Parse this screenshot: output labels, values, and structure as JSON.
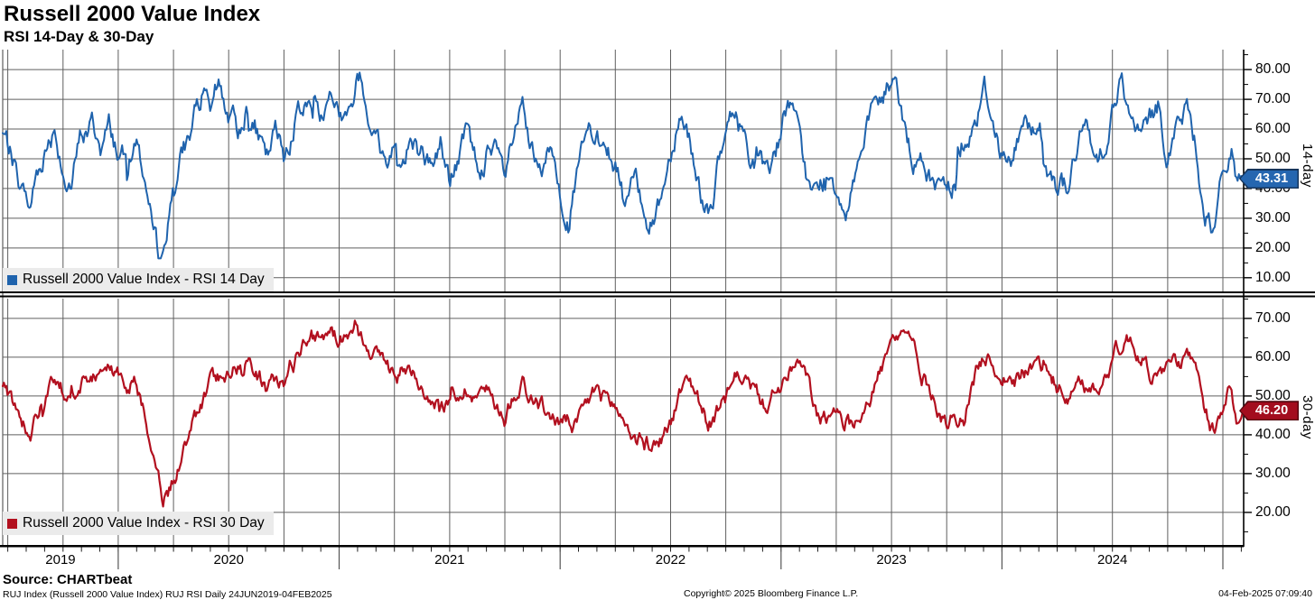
{
  "header": {
    "title": "Russell 2000 Value Index",
    "subtitle": "RSI 14-Day & 30-Day"
  },
  "colors": {
    "rsi14_line": "#1f63ad",
    "rsi14_badge": "#2566b0",
    "rsi14_badge_border": "#16355c",
    "rsi30_line": "#b2101f",
    "rsi30_badge": "#a30d1e",
    "rsi30_badge_border": "#570810",
    "grid": "#5f5f5f",
    "frame": "#000000",
    "legend_bg": "#ebebeb"
  },
  "panels": [
    {
      "id": "rsi14",
      "legend_label": "Russell 2000 Value Index - RSI 14 Day",
      "side_label": "14-day",
      "last_value_label": "43.31",
      "tick_labels": [
        "80.00",
        "70.00",
        "60.00",
        "50.00",
        "40.00",
        "30.00",
        "20.00",
        "10.00"
      ]
    },
    {
      "id": "rsi30",
      "legend_label": "Russell 2000 Value Index - RSI 30 Day",
      "side_label": "30-day",
      "last_value_label": "46.20",
      "tick_labels": [
        "70.00",
        "60.00",
        "50.00",
        "40.00",
        "30.00",
        "20.00"
      ]
    }
  ],
  "xaxis": {
    "years": [
      "2019",
      "2020",
      "2021",
      "2022",
      "2023",
      "2024"
    ],
    "range_text": "24JUN2019-04FEB2025"
  },
  "footer": {
    "source": "Source: CHARTbeat",
    "description": "RUJ Index (Russell 2000 Value Index) RUJ RSI  Daily 24JUN2019-04FEB2025",
    "copyright": "Copyright© 2025 Bloomberg Finance L.P.",
    "datetime": "04-Feb-2025 07:09:40"
  },
  "chart_data": {
    "type": "line",
    "title": "Russell 2000 Value Index — RSI 14-Day & 30-Day",
    "x_domain": [
      2019.477,
      2025.094
    ],
    "x_start_date": "24JUN2019",
    "x_end_date": "04FEB2025",
    "grid": "horizontal every 10 units, vertical quarterly; x band labeled by year",
    "legend_position": "bottom-left inside each panel",
    "series": [
      {
        "name": "Russell 2000 Value Index - RSI 14 Day",
        "color": "#1f63ad",
        "ylim": [
          5.4,
          86.7
        ],
        "yticks": [
          10,
          20,
          30,
          40,
          50,
          60,
          70,
          80
        ],
        "vclamp": [
          16.5,
          79.5
        ],
        "last": 43.31,
        "anchors": [
          [
            2019.48,
            58
          ],
          [
            2019.52,
            50
          ],
          [
            2019.56,
            40
          ],
          [
            2019.6,
            33
          ],
          [
            2019.63,
            45
          ],
          [
            2019.67,
            55
          ],
          [
            2019.71,
            63
          ],
          [
            2019.75,
            50
          ],
          [
            2019.79,
            44
          ],
          [
            2019.83,
            57
          ],
          [
            2019.88,
            61
          ],
          [
            2019.92,
            54
          ],
          [
            2019.96,
            60
          ],
          [
            2020.0,
            53
          ],
          [
            2020.04,
            47
          ],
          [
            2020.08,
            58
          ],
          [
            2020.12,
            45
          ],
          [
            2020.15,
            28
          ],
          [
            2020.18,
            17
          ],
          [
            2020.22,
            26
          ],
          [
            2020.25,
            45
          ],
          [
            2020.29,
            52
          ],
          [
            2020.33,
            58
          ],
          [
            2020.38,
            70
          ],
          [
            2020.42,
            62
          ],
          [
            2020.46,
            73
          ],
          [
            2020.5,
            65
          ],
          [
            2020.54,
            57
          ],
          [
            2020.58,
            70
          ],
          [
            2020.63,
            60
          ],
          [
            2020.67,
            46
          ],
          [
            2020.71,
            56
          ],
          [
            2020.75,
            50
          ],
          [
            2020.79,
            63
          ],
          [
            2020.83,
            72
          ],
          [
            2020.88,
            68
          ],
          [
            2020.92,
            64
          ],
          [
            2020.96,
            71
          ],
          [
            2021.0,
            67
          ],
          [
            2021.04,
            61
          ],
          [
            2021.08,
            74
          ],
          [
            2021.13,
            67
          ],
          [
            2021.17,
            57
          ],
          [
            2021.21,
            48
          ],
          [
            2021.25,
            56
          ],
          [
            2021.29,
            50
          ],
          [
            2021.33,
            59
          ],
          [
            2021.38,
            52
          ],
          [
            2021.42,
            47
          ],
          [
            2021.46,
            56
          ],
          [
            2021.5,
            42
          ],
          [
            2021.54,
            50
          ],
          [
            2021.58,
            56
          ],
          [
            2021.63,
            45
          ],
          [
            2021.67,
            53
          ],
          [
            2021.71,
            48
          ],
          [
            2021.75,
            40
          ],
          [
            2021.79,
            56
          ],
          [
            2021.83,
            63
          ],
          [
            2021.88,
            47
          ],
          [
            2021.92,
            40
          ],
          [
            2021.96,
            53
          ],
          [
            2022.0,
            43
          ],
          [
            2022.04,
            30
          ],
          [
            2022.08,
            46
          ],
          [
            2022.13,
            56
          ],
          [
            2022.17,
            52
          ],
          [
            2022.21,
            58
          ],
          [
            2022.25,
            49
          ],
          [
            2022.29,
            35
          ],
          [
            2022.33,
            41
          ],
          [
            2022.38,
            34
          ],
          [
            2022.42,
            30
          ],
          [
            2022.46,
            39
          ],
          [
            2022.5,
            53
          ],
          [
            2022.54,
            70
          ],
          [
            2022.58,
            61
          ],
          [
            2022.63,
            42
          ],
          [
            2022.67,
            32
          ],
          [
            2022.71,
            46
          ],
          [
            2022.75,
            56
          ],
          [
            2022.79,
            63
          ],
          [
            2022.83,
            58
          ],
          [
            2022.88,
            51
          ],
          [
            2022.92,
            44
          ],
          [
            2022.96,
            49
          ],
          [
            2023.0,
            61
          ],
          [
            2023.04,
            69
          ],
          [
            2023.08,
            54
          ],
          [
            2023.13,
            38
          ],
          [
            2023.17,
            34
          ],
          [
            2023.21,
            46
          ],
          [
            2023.25,
            42
          ],
          [
            2023.29,
            37
          ],
          [
            2023.33,
            49
          ],
          [
            2023.38,
            56
          ],
          [
            2023.42,
            62
          ],
          [
            2023.46,
            68
          ],
          [
            2023.5,
            76
          ],
          [
            2023.54,
            69
          ],
          [
            2023.58,
            54
          ],
          [
            2023.63,
            48
          ],
          [
            2023.67,
            44
          ],
          [
            2023.71,
            40
          ],
          [
            2023.75,
            34
          ],
          [
            2023.79,
            43
          ],
          [
            2023.83,
            56
          ],
          [
            2023.88,
            66
          ],
          [
            2023.92,
            73
          ],
          [
            2023.96,
            64
          ],
          [
            2024.0,
            54
          ],
          [
            2024.04,
            47
          ],
          [
            2024.08,
            58
          ],
          [
            2024.13,
            63
          ],
          [
            2024.17,
            59
          ],
          [
            2024.21,
            51
          ],
          [
            2024.25,
            44
          ],
          [
            2024.29,
            40
          ],
          [
            2024.33,
            53
          ],
          [
            2024.38,
            59
          ],
          [
            2024.42,
            49
          ],
          [
            2024.46,
            56
          ],
          [
            2024.5,
            70
          ],
          [
            2024.54,
            78
          ],
          [
            2024.58,
            61
          ],
          [
            2024.63,
            54
          ],
          [
            2024.67,
            61
          ],
          [
            2024.71,
            66
          ],
          [
            2024.75,
            54
          ],
          [
            2024.79,
            61
          ],
          [
            2024.83,
            66
          ],
          [
            2024.88,
            54
          ],
          [
            2024.92,
            34
          ],
          [
            2024.96,
            27
          ],
          [
            2025.0,
            41
          ],
          [
            2025.04,
            53
          ],
          [
            2025.06,
            46
          ],
          [
            2025.09,
            43.31
          ]
        ]
      },
      {
        "name": "Russell 2000 Value Index - RSI 30 Day",
        "color": "#b2101f",
        "ylim": [
          11.6,
          75.1
        ],
        "yticks": [
          20,
          30,
          40,
          50,
          60,
          70
        ],
        "vclamp": [
          21.5,
          71.2
        ],
        "last": 46.2,
        "anchors": [
          [
            2019.48,
            52
          ],
          [
            2019.54,
            46
          ],
          [
            2019.6,
            42
          ],
          [
            2019.67,
            50
          ],
          [
            2019.71,
            54
          ],
          [
            2019.75,
            51
          ],
          [
            2019.79,
            48
          ],
          [
            2019.83,
            52
          ],
          [
            2019.88,
            56
          ],
          [
            2019.92,
            54
          ],
          [
            2019.96,
            58
          ],
          [
            2020.0,
            56
          ],
          [
            2020.04,
            53
          ],
          [
            2020.08,
            55
          ],
          [
            2020.13,
            45
          ],
          [
            2020.17,
            28
          ],
          [
            2020.2,
            22
          ],
          [
            2020.25,
            28
          ],
          [
            2020.33,
            42
          ],
          [
            2020.42,
            52
          ],
          [
            2020.5,
            57
          ],
          [
            2020.58,
            61
          ],
          [
            2020.63,
            57
          ],
          [
            2020.67,
            52
          ],
          [
            2020.75,
            53
          ],
          [
            2020.83,
            63
          ],
          [
            2020.88,
            64
          ],
          [
            2020.92,
            62
          ],
          [
            2020.96,
            66
          ],
          [
            2021.0,
            64
          ],
          [
            2021.08,
            70
          ],
          [
            2021.13,
            66
          ],
          [
            2021.17,
            61
          ],
          [
            2021.25,
            56
          ],
          [
            2021.33,
            57
          ],
          [
            2021.42,
            52
          ],
          [
            2021.5,
            48
          ],
          [
            2021.58,
            53
          ],
          [
            2021.67,
            51
          ],
          [
            2021.75,
            46
          ],
          [
            2021.83,
            56
          ],
          [
            2021.92,
            47
          ],
          [
            2022.0,
            43
          ],
          [
            2022.08,
            42
          ],
          [
            2022.17,
            51
          ],
          [
            2022.25,
            47
          ],
          [
            2022.33,
            40
          ],
          [
            2022.42,
            37
          ],
          [
            2022.5,
            43
          ],
          [
            2022.58,
            56
          ],
          [
            2022.67,
            43
          ],
          [
            2022.75,
            48
          ],
          [
            2022.83,
            56
          ],
          [
            2022.92,
            47
          ],
          [
            2023.0,
            53
          ],
          [
            2023.08,
            58
          ],
          [
            2023.17,
            44
          ],
          [
            2023.25,
            42
          ],
          [
            2023.33,
            45
          ],
          [
            2023.42,
            53
          ],
          [
            2023.5,
            63
          ],
          [
            2023.58,
            65
          ],
          [
            2023.67,
            53
          ],
          [
            2023.75,
            44
          ],
          [
            2023.83,
            46
          ],
          [
            2023.92,
            61
          ],
          [
            2024.0,
            57
          ],
          [
            2024.08,
            55
          ],
          [
            2024.17,
            58
          ],
          [
            2024.25,
            51
          ],
          [
            2024.33,
            50
          ],
          [
            2024.42,
            52
          ],
          [
            2024.5,
            61
          ],
          [
            2024.58,
            65
          ],
          [
            2024.67,
            57
          ],
          [
            2024.75,
            56
          ],
          [
            2024.83,
            60
          ],
          [
            2024.88,
            55
          ],
          [
            2024.92,
            42
          ],
          [
            2024.96,
            40
          ],
          [
            2025.0,
            44
          ],
          [
            2025.03,
            52
          ],
          [
            2025.06,
            44
          ],
          [
            2025.09,
            46.2
          ]
        ]
      }
    ]
  },
  "render_hints": {
    "samples": 1030,
    "noise": [
      {
        "seed": 7,
        "amp": 3.3,
        "decay": 0.85,
        "wclamp": 8.5,
        "spike": 0.03
      },
      {
        "seed": 11,
        "amp": 1.8,
        "decay": 0.85,
        "wclamp": 5.0,
        "spike": 0.025
      }
    ]
  }
}
